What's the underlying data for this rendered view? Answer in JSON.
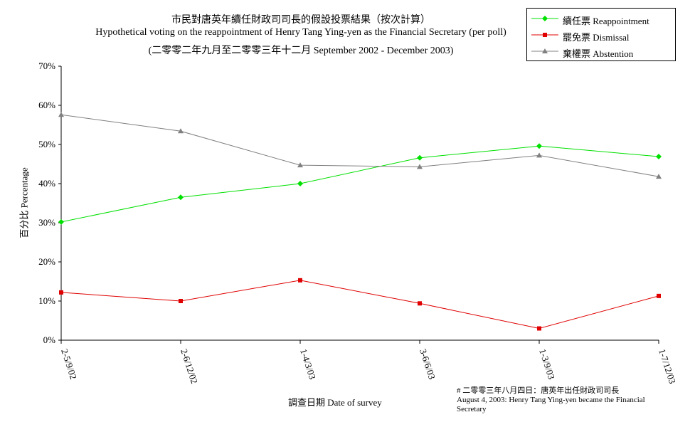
{
  "chart_data": {
    "type": "line",
    "title": "市民對唐英年續任財政司司長的假設投票結果（按次計算）",
    "subtitle": "Hypothetical voting on the reappointment of Henry Tang Ying-yen as the Financial Secretary (per poll)",
    "subtitle2": "(二零零二年九月至二零零三年十二月 September 2002 - December 2003)",
    "xlabel": "調查日期 Date of survey",
    "ylabel": "百分比 Percentage",
    "categories": [
      "2-5/9/02",
      "2-6/12/02",
      "1-4/3/03",
      "3-6/6/03",
      "1-3/9/03",
      "1-7/12/03"
    ],
    "y_ticks": [
      "0%",
      "10%",
      "20%",
      "30%",
      "40%",
      "50%",
      "60%",
      "70%"
    ],
    "ylim": [
      0,
      70
    ],
    "grid": false,
    "legend_position": "top-right",
    "series": [
      {
        "name": "續任票 Reappointment",
        "color": "#00e000",
        "marker": "diamond",
        "values": [
          30.2,
          36.5,
          40.0,
          46.6,
          49.6,
          46.9
        ]
      },
      {
        "name": "罷免票 Dismissal",
        "color": "#e00000",
        "marker": "square",
        "values": [
          12.2,
          10.0,
          15.3,
          9.4,
          3.0,
          11.3
        ]
      },
      {
        "name": "棄權票 Abstention",
        "color": "#808080",
        "marker": "triangle",
        "values": [
          57.6,
          53.4,
          44.7,
          44.3,
          47.2,
          41.8
        ]
      }
    ],
    "footnote": [
      "# 二零零三年八月四日：唐英年出任財政司司長",
      "August 4, 2003: Henry Tang Ying-yen became the Financial",
      "Secretary"
    ]
  }
}
